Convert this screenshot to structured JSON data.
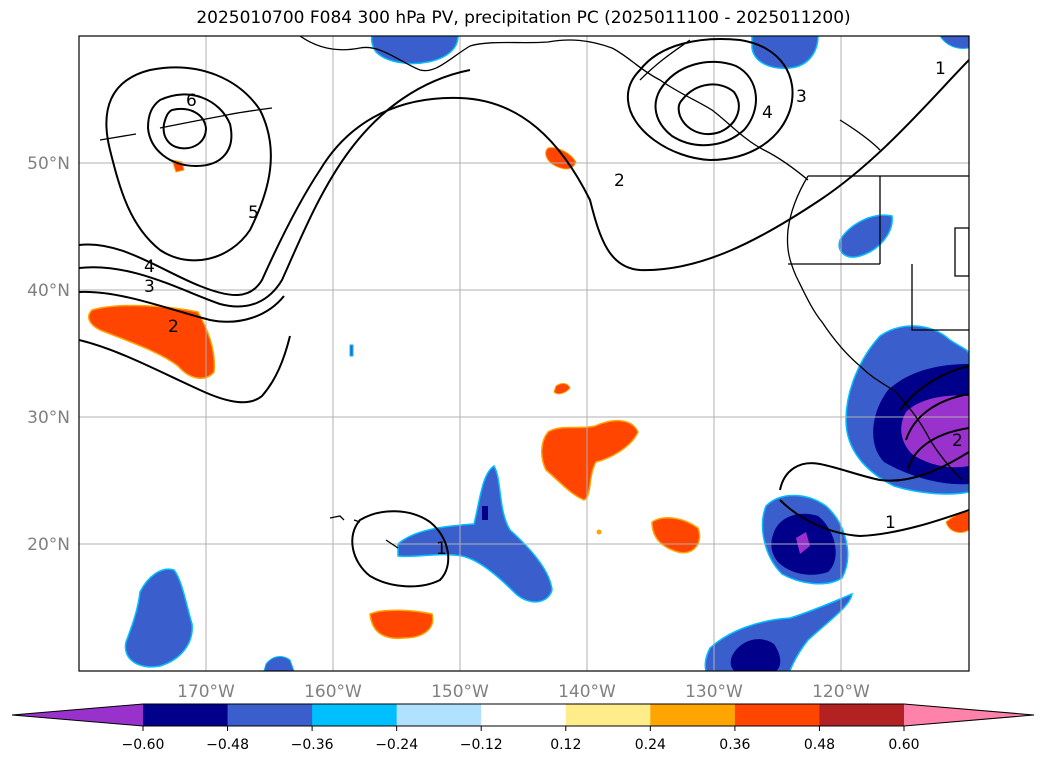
{
  "title": "2025010700 F084 300 hPa PV, precipitation PC (2025011100 - 2025011200)",
  "map": {
    "lat_labels": [
      "50°N",
      "40°N",
      "30°N",
      "20°N"
    ],
    "lon_labels": [
      "170°W",
      "160°W",
      "150°W",
      "140°W",
      "130°W",
      "120°W"
    ],
    "pv_contour_labels": [
      "6",
      "5",
      "4",
      "3",
      "2",
      "1",
      "2",
      "3",
      "4",
      "1",
      "1",
      "2"
    ],
    "gridlines": true,
    "extent": {
      "lon": [
        -180,
        -110
      ],
      "lat": [
        10,
        60
      ]
    }
  },
  "colorbar": {
    "ticks": [
      "−0.60",
      "−0.48",
      "−0.36",
      "−0.24",
      "−0.12",
      "0.12",
      "0.24",
      "0.36",
      "0.48",
      "0.60"
    ],
    "colors": [
      "#9932cc",
      "#00008b",
      "#3a5fcd",
      "#00bfff",
      "#b0e2ff",
      "#ffffff",
      "#ffec8b",
      "#ffa500",
      "#ff4500",
      "#b22222",
      "#ff82ab"
    ],
    "extend": "both"
  }
}
